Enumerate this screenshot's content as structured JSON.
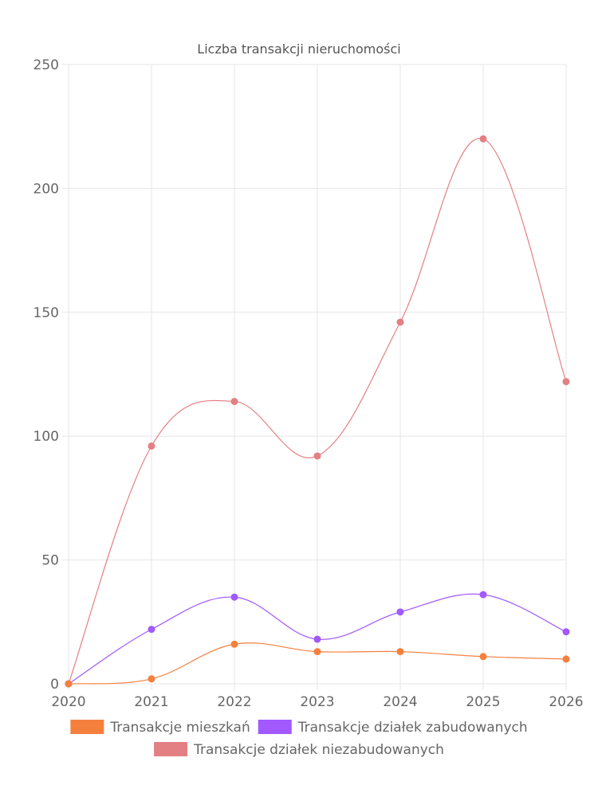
{
  "chart_data": {
    "type": "line",
    "title": "Liczba transakcji nieruchomości",
    "x": [
      "2020",
      "2021",
      "2022",
      "2023",
      "2024",
      "2025",
      "2026"
    ],
    "ylim": [
      0,
      250
    ],
    "yticks": [
      "0",
      "50",
      "100",
      "150",
      "200",
      "250"
    ],
    "grid": true,
    "legend_position": "bottom",
    "series": [
      {
        "name": "Transakcje mieszkań",
        "color": "#f5803e",
        "values": [
          0,
          2,
          16,
          13,
          13,
          11,
          10
        ]
      },
      {
        "name": "Transakcje działek zabudowanych",
        "color": "#a259ff",
        "values": [
          0,
          22,
          35,
          18,
          29,
          36,
          21
        ]
      },
      {
        "name": "Transakcje działek niezabudowanych",
        "color": "#e38084",
        "values": [
          0,
          96,
          114,
          92,
          146,
          220,
          122
        ]
      }
    ]
  }
}
